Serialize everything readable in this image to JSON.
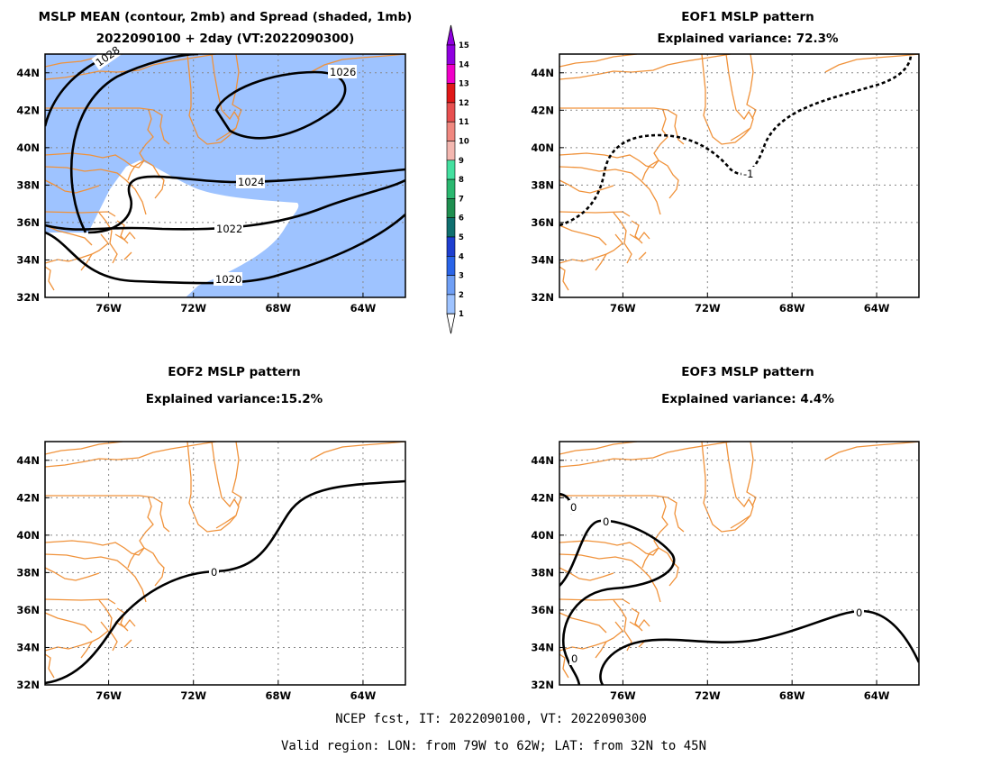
{
  "panels": [
    {
      "id": "p1",
      "title1": "MSLP MEAN (contour, 2mb) and Spread (shaded, 1mb)",
      "title2": "2022090100 + 2day (VT:2022090300)"
    },
    {
      "id": "p2",
      "title1": "EOF1 MSLP pattern",
      "title2": "Explained variance: 72.3%"
    },
    {
      "id": "p3",
      "title1": "EOF2 MSLP pattern",
      "title2": "Explained variance:15.2%"
    },
    {
      "id": "p4",
      "title1": "EOF3 MSLP pattern",
      "title2": "Explained variance: 4.4%"
    }
  ],
  "footer": {
    "line1": "NCEP fcst, IT: 2022090100, VT: 2022090300",
    "line2": "Valid region: LON: from 79W to 62W; LAT: from 32N to 45N"
  },
  "chart_data": [
    {
      "type": "heatmap",
      "title": "MSLP MEAN (contour, 2mb) and Spread (shaded, 1mb)",
      "subtitle": "2022090100 + 2day (VT:2022090300)",
      "x_ticks": [
        "76W",
        "72W",
        "68W",
        "64W"
      ],
      "y_ticks": [
        "44N",
        "42N",
        "40N",
        "38N",
        "36N",
        "34N",
        "32N"
      ],
      "xlim": [
        -79,
        -62
      ],
      "ylim": [
        32,
        45
      ],
      "contour_interval_mb": 2,
      "contour_labels": [
        "1028",
        "1026",
        "1024",
        "1022",
        "1020"
      ],
      "shading_interval_mb": 1,
      "shading_fill": "#9ec3ff",
      "colorbar": {
        "labels": [
          "1",
          "2",
          "3",
          "4",
          "5",
          "6",
          "7",
          "8",
          "9",
          "10",
          "11",
          "12",
          "13",
          "14",
          "15"
        ],
        "colors": [
          "#ffffff",
          "#9ec3ff",
          "#6f9ff5",
          "#2a64e8",
          "#1e3fd0",
          "#0f6f6f",
          "#1f8f50",
          "#2bb870",
          "#44e0a0",
          "#f3b7b0",
          "#f08880",
          "#e85050",
          "#e01818",
          "#f000c8",
          "#9000e0"
        ]
      }
    },
    {
      "type": "heatmap",
      "title": "EOF1 MSLP pattern",
      "subtitle": "Explained variance: 72.3%",
      "x_ticks": [
        "76W",
        "72W",
        "68W",
        "64W"
      ],
      "y_ticks": [
        "44N",
        "42N",
        "40N",
        "38N",
        "36N",
        "34N",
        "32N"
      ],
      "xlim": [
        -79,
        -62
      ],
      "ylim": [
        32,
        45
      ],
      "contour_labels": [
        "-1"
      ],
      "explained_variance_pct": 72.3
    },
    {
      "type": "heatmap",
      "title": "EOF2 MSLP pattern",
      "subtitle": "Explained variance:15.2%",
      "x_ticks": [
        "76W",
        "72W",
        "68W",
        "64W"
      ],
      "y_ticks": [
        "44N",
        "42N",
        "40N",
        "38N",
        "36N",
        "34N",
        "32N"
      ],
      "xlim": [
        -79,
        -62
      ],
      "ylim": [
        32,
        45
      ],
      "contour_labels": [
        "0"
      ],
      "explained_variance_pct": 15.2
    },
    {
      "type": "heatmap",
      "title": "EOF3 MSLP pattern",
      "subtitle": "Explained variance: 4.4%",
      "x_ticks": [
        "76W",
        "72W",
        "68W",
        "64W"
      ],
      "y_ticks": [
        "44N",
        "42N",
        "40N",
        "38N",
        "36N",
        "34N",
        "32N"
      ],
      "xlim": [
        -79,
        -62
      ],
      "ylim": [
        32,
        45
      ],
      "contour_labels": [
        "0",
        "0",
        "0",
        "0"
      ],
      "explained_variance_pct": 4.4
    }
  ]
}
